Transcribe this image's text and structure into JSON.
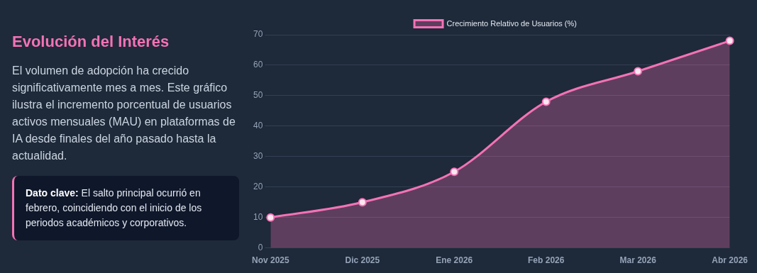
{
  "chart_data": {
    "type": "area",
    "title": "Evolución del Interés",
    "subtitle": "El volumen de adopción ha crecido significativamente mes a mes. Este gráfico ilustra el incremento porcentual de usuarios activos mensuales (MAU) en plataformas de IA desde finales del año pasado hasta la actualidad.",
    "annotations": [
      "Dato clave: El salto principal ocurrió en febrero, coincidiendo con el inicio de los periodos académicos y corporativos."
    ],
    "categories": [
      "Nov 2025",
      "Dic 2025",
      "Ene 2026",
      "Feb 2026",
      "Mar 2026",
      "Abr 2026"
    ],
    "series": [
      {
        "name": "Crecimiento Relativo de Usuarios (%)",
        "color": "#f472b6",
        "values": [
          10,
          15,
          25,
          48,
          58,
          68
        ]
      }
    ],
    "ylim": [
      0,
      70
    ],
    "yticks": [
      0,
      10,
      20,
      30,
      40,
      50,
      60,
      70
    ],
    "grid": "y",
    "legend": "top",
    "marker": "circle"
  }
}
